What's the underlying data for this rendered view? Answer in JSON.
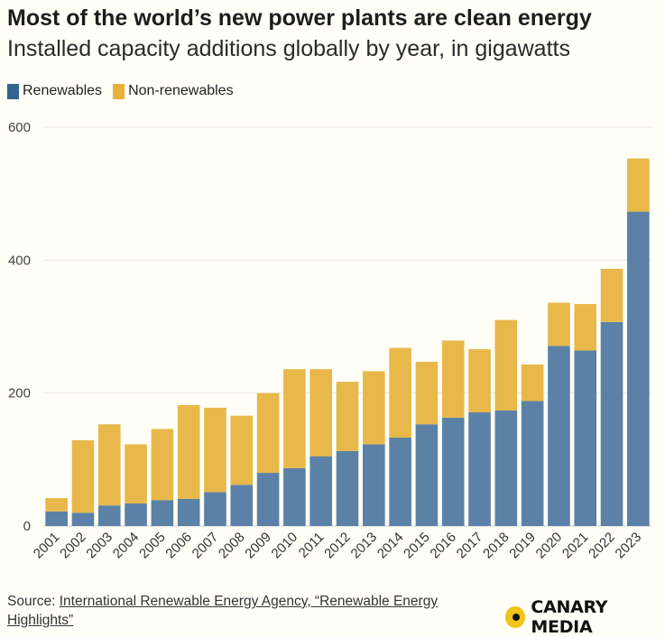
{
  "chart_data": {
    "type": "bar",
    "stacked": true,
    "title": "Most of the world’s new power plants are clean energy",
    "subtitle": "Installed capacity additions globally by year, in gigawatts",
    "categories": [
      "2001",
      "2002",
      "2003",
      "2004",
      "2005",
      "2006",
      "2007",
      "2008",
      "2009",
      "2010",
      "2011",
      "2012",
      "2013",
      "2014",
      "2015",
      "2016",
      "2017",
      "2018",
      "2019",
      "2020",
      "2021",
      "2022",
      "2023"
    ],
    "series": [
      {
        "name": "Renewables",
        "color": "#5b82a6",
        "values": [
          22,
          20,
          31,
          34,
          39,
          41,
          51,
          62,
          80,
          87,
          105,
          113,
          123,
          133,
          153,
          163,
          171,
          174,
          188,
          271,
          264,
          307,
          473
        ]
      },
      {
        "name": "Non-renewables",
        "color": "#e8b94a",
        "values": [
          20,
          109,
          122,
          89,
          107,
          141,
          127,
          104,
          120,
          149,
          131,
          104,
          110,
          135,
          94,
          116,
          95,
          136,
          55,
          65,
          70,
          80,
          80
        ]
      }
    ],
    "ylim": [
      0,
      600
    ],
    "yticks": [
      0,
      200,
      400,
      600
    ],
    "grid": true,
    "legend_position": "top-left"
  },
  "footer": {
    "source_prefix": "Source: ",
    "source_link": "International Renewable Energy Agency, “Renewable Energy Highlights”",
    "brand": "CANARY MEDIA"
  }
}
